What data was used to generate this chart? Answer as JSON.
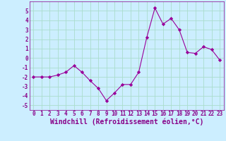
{
  "x": [
    0,
    1,
    2,
    3,
    4,
    5,
    6,
    7,
    8,
    9,
    10,
    11,
    12,
    13,
    14,
    15,
    16,
    17,
    18,
    19,
    20,
    21,
    22,
    23
  ],
  "y": [
    -2,
    -2,
    -2,
    -1.8,
    -1.5,
    -0.8,
    -1.5,
    -2.4,
    -3.2,
    -4.5,
    -3.7,
    -2.8,
    -2.8,
    -1.5,
    2.2,
    5.3,
    3.6,
    4.2,
    3.0,
    0.6,
    0.5,
    1.2,
    0.9,
    -0.2
  ],
  "line_color": "#990099",
  "marker": "D",
  "marker_size": 2.2,
  "bg_color": "#cceeff",
  "grid_color": "#aaddcc",
  "xlabel": "Windchill (Refroidissement éolien,°C)",
  "xlim": [
    -0.5,
    23.5
  ],
  "ylim": [
    -5.5,
    6.0
  ],
  "yticks": [
    -5,
    -4,
    -3,
    -2,
    -1,
    0,
    1,
    2,
    3,
    4,
    5
  ],
  "xticks": [
    0,
    1,
    2,
    3,
    4,
    5,
    6,
    7,
    8,
    9,
    10,
    11,
    12,
    13,
    14,
    15,
    16,
    17,
    18,
    19,
    20,
    21,
    22,
    23
  ],
  "tick_label_fontsize": 5.5,
  "xlabel_fontsize": 7.0,
  "label_color": "#880088"
}
